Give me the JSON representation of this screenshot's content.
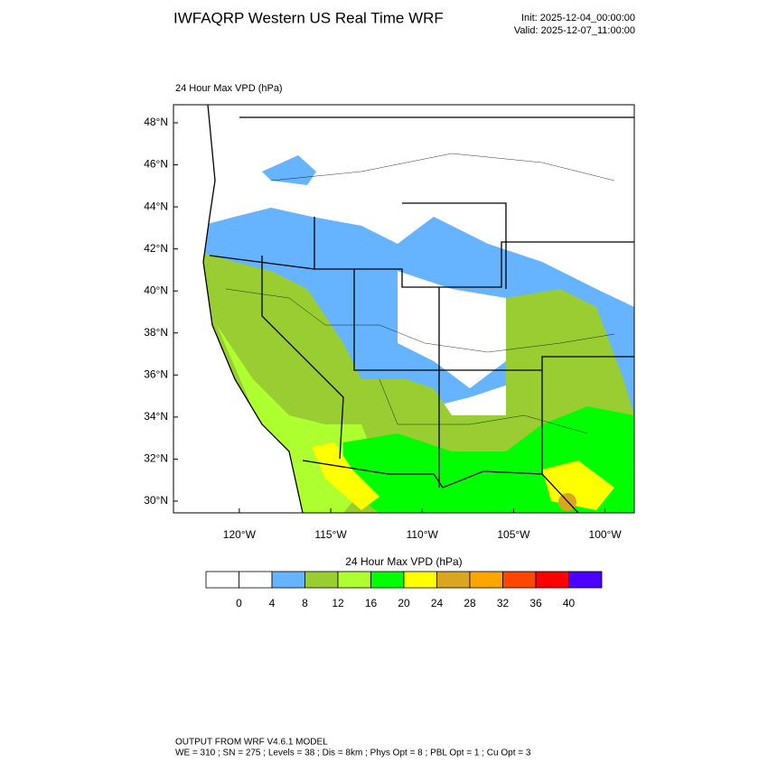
{
  "header": {
    "title": "IWFAQRP Western US Real Time WRF",
    "init": "Init: 2025-12-04_00:00:00",
    "valid": "Valid: 2025-12-07_11:00:00",
    "field": "24 Hour Max VPD   (hPa)"
  },
  "map": {
    "lonlim": [
      -123.6,
      -98.4
    ],
    "latlim": [
      29.44,
      48.86
    ],
    "lat_ticks": [
      {
        "value": 48,
        "label": "48°N"
      },
      {
        "value": 46,
        "label": "46°N"
      },
      {
        "value": 44,
        "label": "44°N"
      },
      {
        "value": 42,
        "label": "42°N"
      },
      {
        "value": 40,
        "label": "40°N"
      },
      {
        "value": 38,
        "label": "38°N"
      },
      {
        "value": 36,
        "label": "36°N"
      },
      {
        "value": 34,
        "label": "34°N"
      },
      {
        "value": 32,
        "label": "32°N"
      },
      {
        "value": 30,
        "label": "30°N"
      }
    ],
    "lon_ticks": [
      {
        "value": -120,
        "label": "120°W"
      },
      {
        "value": -115,
        "label": "115°W"
      },
      {
        "value": -110,
        "label": "110°W"
      },
      {
        "value": -105,
        "label": "105°W"
      },
      {
        "value": -100,
        "label": "100°W"
      }
    ]
  },
  "colorbar": {
    "label": "24 Hour Max VPD  (hPa)",
    "colors": [
      "#ffffff",
      "#ffffff",
      "#66b3ff",
      "#9acd32",
      "#adff2f",
      "#00ff00",
      "#ffff00",
      "#daa520",
      "#ffa500",
      "#ff4500",
      "#ff0000",
      "#4b00ff"
    ],
    "ticks": [
      0,
      4,
      8,
      12,
      16,
      20,
      24,
      28,
      32,
      36,
      40
    ]
  },
  "footer": {
    "line1": "OUTPUT FROM WRF V4.6.1 MODEL",
    "line2": "WE = 310 ; SN = 275 ; Levels = 38 ; Dis = 8km ; Phys Opt = 8 ; PBL Opt = 1 ; Cu Opt = 3"
  }
}
